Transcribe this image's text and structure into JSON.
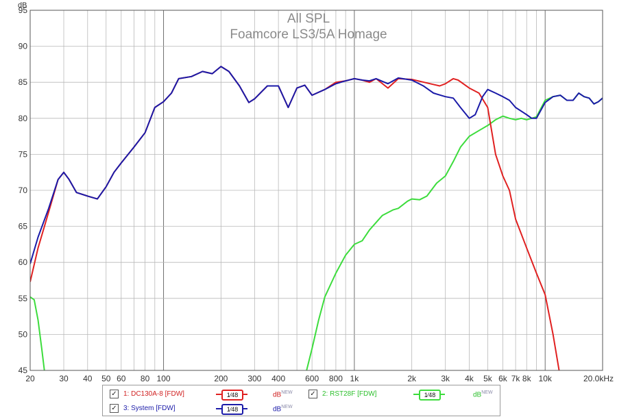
{
  "chart_data": {
    "type": "line",
    "title": "All SPL",
    "subtitle": "Foamcore LS3/5A Homage",
    "ylabel": "dB",
    "xscale": "log",
    "xlim": [
      20,
      20000
    ],
    "ylim": [
      45,
      95
    ],
    "yticks": [
      "95",
      "90",
      "85",
      "80",
      "75",
      "70",
      "65",
      "60",
      "55",
      "50",
      "45"
    ],
    "ytick_values": [
      95,
      90,
      85,
      80,
      75,
      70,
      65,
      60,
      55,
      50,
      45
    ],
    "xticks": [
      {
        "f": 20,
        "label": "20"
      },
      {
        "f": 30,
        "label": "30"
      },
      {
        "f": 40,
        "label": "40"
      },
      {
        "f": 50,
        "label": "50"
      },
      {
        "f": 60,
        "label": "60"
      },
      {
        "f": 80,
        "label": "80"
      },
      {
        "f": 100,
        "label": "100"
      },
      {
        "f": 200,
        "label": "200"
      },
      {
        "f": 300,
        "label": "300"
      },
      {
        "f": 400,
        "label": "400"
      },
      {
        "f": 600,
        "label": "600"
      },
      {
        "f": 800,
        "label": "800"
      },
      {
        "f": 1000,
        "label": "1k"
      },
      {
        "f": 2000,
        "label": "2k"
      },
      {
        "f": 3000,
        "label": "3k"
      },
      {
        "f": 4000,
        "label": "4k"
      },
      {
        "f": 5000,
        "label": "5k"
      },
      {
        "f": 6000,
        "label": "6k"
      },
      {
        "f": 7000,
        "label": "7k"
      },
      {
        "f": 8000,
        "label": "8k"
      },
      {
        "f": 10000,
        "label": "10k"
      },
      {
        "f": 20000,
        "label": "20.0kHz"
      }
    ],
    "grid": true,
    "series": [
      {
        "name": "1: DC130A-8 [FDW]",
        "color": "#e02020",
        "points": [
          [
            20,
            57.3
          ],
          [
            22,
            62
          ],
          [
            25,
            67
          ],
          [
            28,
            71.5
          ],
          [
            30,
            72.5
          ],
          [
            32,
            71.5
          ],
          [
            35,
            69.7
          ],
          [
            40,
            69.2
          ],
          [
            45,
            68.8
          ],
          [
            50,
            70.5
          ],
          [
            55,
            72.5
          ],
          [
            60,
            73.8
          ],
          [
            70,
            76
          ],
          [
            80,
            78
          ],
          [
            90,
            81.5
          ],
          [
            100,
            82.3
          ],
          [
            110,
            83.5
          ],
          [
            120,
            85.5
          ],
          [
            140,
            85.8
          ],
          [
            160,
            86.5
          ],
          [
            180,
            86.2
          ],
          [
            200,
            87.2
          ],
          [
            220,
            86.5
          ],
          [
            250,
            84.5
          ],
          [
            280,
            82.2
          ],
          [
            300,
            82.7
          ],
          [
            350,
            84.5
          ],
          [
            400,
            84.5
          ],
          [
            450,
            81.5
          ],
          [
            500,
            84.2
          ],
          [
            550,
            84.6
          ],
          [
            600,
            83.2
          ],
          [
            700,
            84
          ],
          [
            800,
            85
          ],
          [
            900,
            85.2
          ],
          [
            1000,
            85.5
          ],
          [
            1100,
            85.3
          ],
          [
            1200,
            85
          ],
          [
            1300,
            85.5
          ],
          [
            1500,
            84.2
          ],
          [
            1700,
            85.5
          ],
          [
            2000,
            85.4
          ],
          [
            2500,
            84.8
          ],
          [
            2800,
            84.5
          ],
          [
            3000,
            84.8
          ],
          [
            3300,
            85.5
          ],
          [
            3500,
            85.3
          ],
          [
            4000,
            84.2
          ],
          [
            4500,
            83.5
          ],
          [
            5000,
            81.5
          ],
          [
            5500,
            75
          ],
          [
            6000,
            72
          ],
          [
            6500,
            70
          ],
          [
            7000,
            66
          ],
          [
            8000,
            62
          ],
          [
            9000,
            58.5
          ],
          [
            10000,
            55.5
          ],
          [
            11000,
            50
          ],
          [
            12000,
            44
          ]
        ]
      },
      {
        "name": "2: RST28F [FDW]",
        "color": "#3cdc3c",
        "points": [
          [
            20,
            55.2
          ],
          [
            21,
            54.8
          ],
          [
            22,
            52
          ],
          [
            23,
            48
          ],
          [
            24,
            44
          ],
          [
            550,
            44
          ],
          [
            600,
            48
          ],
          [
            650,
            52
          ],
          [
            700,
            55.2
          ],
          [
            800,
            58.5
          ],
          [
            900,
            61
          ],
          [
            1000,
            62.5
          ],
          [
            1100,
            63
          ],
          [
            1200,
            64.5
          ],
          [
            1400,
            66.5
          ],
          [
            1600,
            67.3
          ],
          [
            1700,
            67.5
          ],
          [
            1900,
            68.5
          ],
          [
            2000,
            68.8
          ],
          [
            2200,
            68.7
          ],
          [
            2400,
            69.2
          ],
          [
            2700,
            71
          ],
          [
            3000,
            72
          ],
          [
            3300,
            74
          ],
          [
            3600,
            76
          ],
          [
            4000,
            77.5
          ],
          [
            4500,
            78.3
          ],
          [
            5000,
            79
          ],
          [
            5500,
            79.8
          ],
          [
            6000,
            80.3
          ],
          [
            6500,
            80
          ],
          [
            7000,
            79.8
          ],
          [
            7500,
            80
          ],
          [
            8000,
            79.8
          ],
          [
            9000,
            80.2
          ],
          [
            10000,
            82.5
          ],
          [
            11000,
            83
          ],
          [
            12000,
            83.2
          ],
          [
            13000,
            82.5
          ],
          [
            14000,
            82.5
          ],
          [
            15000,
            83.5
          ],
          [
            16000,
            83
          ],
          [
            17000,
            82.8
          ],
          [
            18000,
            82
          ],
          [
            19000,
            82.3
          ],
          [
            20000,
            82.8
          ]
        ]
      },
      {
        "name": "3: System [FDW]",
        "color": "#1a1aa8",
        "points": [
          [
            20,
            59.8
          ],
          [
            22,
            63.5
          ],
          [
            25,
            67.5
          ],
          [
            28,
            71.5
          ],
          [
            30,
            72.5
          ],
          [
            32,
            71.5
          ],
          [
            35,
            69.7
          ],
          [
            40,
            69.2
          ],
          [
            45,
            68.8
          ],
          [
            50,
            70.5
          ],
          [
            55,
            72.5
          ],
          [
            60,
            73.8
          ],
          [
            70,
            76
          ],
          [
            80,
            78
          ],
          [
            90,
            81.5
          ],
          [
            100,
            82.3
          ],
          [
            110,
            83.5
          ],
          [
            120,
            85.5
          ],
          [
            140,
            85.8
          ],
          [
            160,
            86.5
          ],
          [
            180,
            86.2
          ],
          [
            200,
            87.2
          ],
          [
            220,
            86.5
          ],
          [
            250,
            84.5
          ],
          [
            280,
            82.2
          ],
          [
            300,
            82.7
          ],
          [
            350,
            84.5
          ],
          [
            400,
            84.5
          ],
          [
            450,
            81.5
          ],
          [
            500,
            84.2
          ],
          [
            550,
            84.6
          ],
          [
            600,
            83.2
          ],
          [
            700,
            84
          ],
          [
            800,
            84.8
          ],
          [
            900,
            85.2
          ],
          [
            1000,
            85.5
          ],
          [
            1100,
            85.3
          ],
          [
            1200,
            85.2
          ],
          [
            1300,
            85.5
          ],
          [
            1500,
            84.8
          ],
          [
            1700,
            85.6
          ],
          [
            2000,
            85.3
          ],
          [
            2300,
            84.5
          ],
          [
            2600,
            83.5
          ],
          [
            3000,
            83
          ],
          [
            3300,
            82.8
          ],
          [
            3600,
            81.5
          ],
          [
            4000,
            80
          ],
          [
            4300,
            80.5
          ],
          [
            4700,
            83
          ],
          [
            5000,
            84
          ],
          [
            5500,
            83.5
          ],
          [
            6000,
            83
          ],
          [
            6500,
            82.5
          ],
          [
            7000,
            81.5
          ],
          [
            8000,
            80.5
          ],
          [
            8500,
            80
          ],
          [
            9000,
            80
          ],
          [
            10000,
            82.2
          ],
          [
            11000,
            83
          ],
          [
            12000,
            83.2
          ],
          [
            13000,
            82.5
          ],
          [
            14000,
            82.5
          ],
          [
            15000,
            83.5
          ],
          [
            16000,
            83
          ],
          [
            17000,
            82.8
          ],
          [
            18000,
            82
          ],
          [
            19000,
            82.3
          ],
          [
            20000,
            82.8
          ]
        ]
      }
    ]
  },
  "legend": [
    {
      "check": "✓",
      "name": "1: DC130A-8 [FDW]",
      "smoothing": "1⁄48",
      "unit": "dB",
      "unit_sup": "NEW",
      "color": "#e02020"
    },
    {
      "check": "✓",
      "name": "2: RST28F [FDW]",
      "smoothing": "1⁄48",
      "unit": "dB",
      "unit_sup": "NEW",
      "color": "#3cdc3c"
    },
    {
      "check": "✓",
      "name": "3: System [FDW]",
      "smoothing": "1⁄48",
      "unit": "dB",
      "unit_sup": "NEW",
      "color": "#1a1aa8"
    }
  ]
}
